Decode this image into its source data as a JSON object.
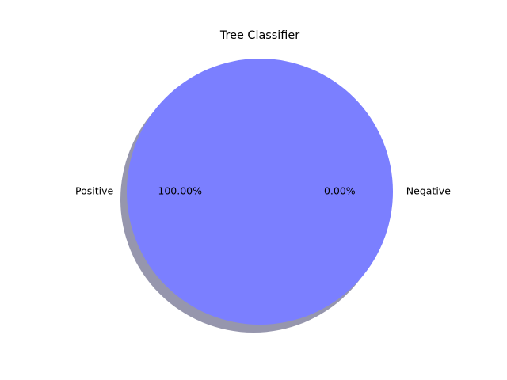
{
  "chart_data": {
    "type": "pie",
    "title": "Tree Classifier",
    "categories": [
      "Positive",
      "Negative"
    ],
    "values": [
      100.0,
      0.0
    ],
    "percent_labels": [
      "100.00%",
      "0.00%"
    ],
    "colors": [
      "#7b7fff",
      "#ff8080"
    ],
    "shadow": true,
    "shadow_color": "#9696ad",
    "legend": "none",
    "grid": false
  }
}
